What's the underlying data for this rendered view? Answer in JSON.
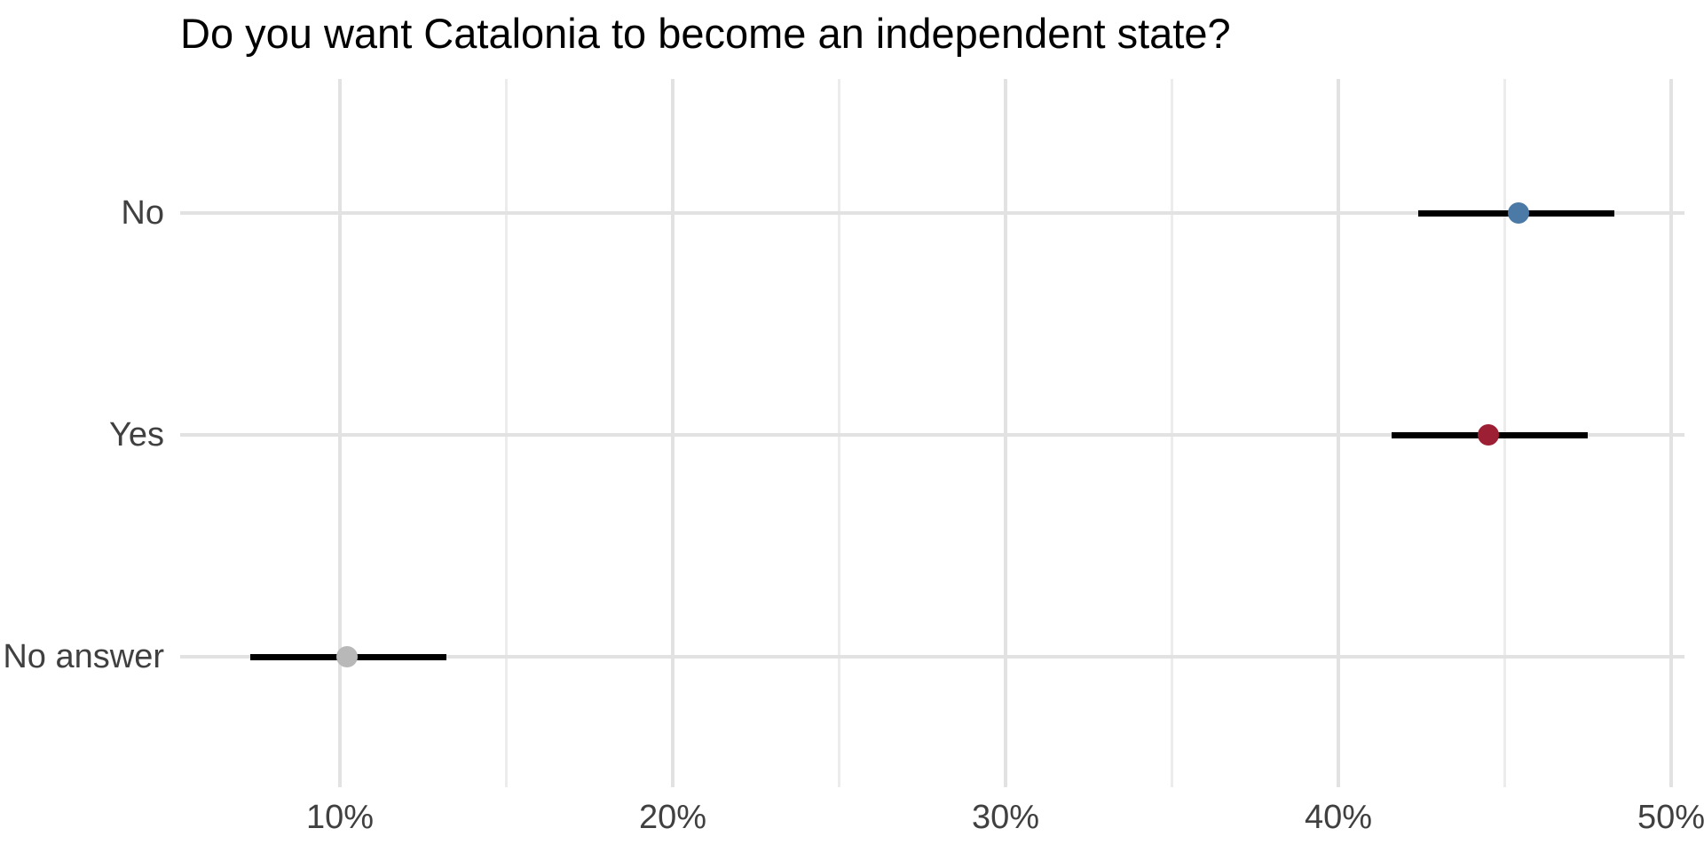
{
  "chart_data": {
    "type": "scatter",
    "subtype": "horizontal dot plot with confidence-interval error bars",
    "title": "Do you want Catalonia to become an independent state?",
    "categories": [
      "No",
      "Yes",
      "No answer"
    ],
    "values": [
      45.4,
      44.5,
      10.2
    ],
    "ci_low": [
      42.4,
      41.6,
      7.3
    ],
    "ci_high": [
      48.3,
      47.5,
      13.2
    ],
    "point_colors": [
      "#4a7aa5",
      "#9c1f33",
      "#b8b8b8"
    ],
    "xlabel": "",
    "ylabel": "",
    "xlim": [
      5.2,
      50.4
    ],
    "x_ticks_major": [
      10,
      20,
      30,
      40,
      50
    ],
    "x_ticks_minor": [
      15,
      25,
      35,
      45
    ],
    "x_tick_suffix": "%",
    "grid": {
      "vertical_major": true,
      "vertical_minor": true,
      "horizontal_major_per_category": true,
      "horizontal_minor": false
    },
    "legend": "none"
  },
  "colors": {
    "background": "#ffffff",
    "title_text": "#000000",
    "axis_text": "#404040",
    "grid_major": "#e2e2e2",
    "grid_minor": "#ececec",
    "error_bar": "#000000"
  }
}
